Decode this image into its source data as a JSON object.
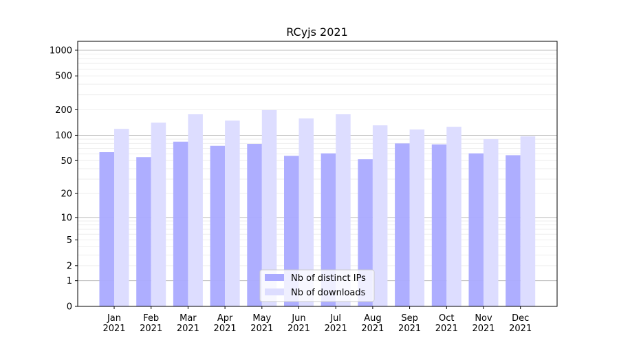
{
  "chart_data": {
    "type": "bar",
    "title": "RCyjs 2021",
    "xlabel": "",
    "ylabel": "",
    "yscale": "log(1+y)",
    "ylim": [
      0,
      1270
    ],
    "yticks": [
      0,
      1,
      2,
      5,
      10,
      20,
      50,
      100,
      200,
      500,
      1000
    ],
    "grid": true,
    "legend_position": "lower center",
    "categories": [
      "Jan\n2021",
      "Feb\n2021",
      "Mar\n2021",
      "Apr\n2021",
      "May\n2021",
      "Jun\n2021",
      "Jul\n2021",
      "Aug\n2021",
      "Sep\n2021",
      "Oct\n2021",
      "Nov\n2021",
      "Dec\n2021"
    ],
    "series": [
      {
        "name": "Nb of distinct IPs",
        "color": "#aaaaff",
        "values": [
          63,
          55,
          84,
          75,
          79,
          57,
          61,
          52,
          80,
          78,
          61,
          58
        ]
      },
      {
        "name": "Nb of downloads",
        "color": "#ddddff",
        "values": [
          119,
          141,
          177,
          149,
          198,
          158,
          177,
          131,
          117,
          126,
          90,
          97
        ]
      }
    ]
  }
}
